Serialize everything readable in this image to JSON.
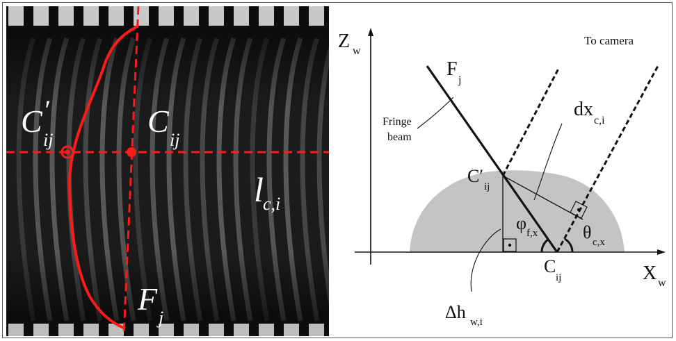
{
  "figure": {
    "photo": {
      "labels": {
        "c_prime_main": "C",
        "c_prime_mark": "′",
        "c_prime_sub": "ij",
        "c_main": "C",
        "c_sub": "ij",
        "l_main": "l",
        "l_sub": "c,i",
        "f_main": "F",
        "f_sub": "j"
      },
      "colors": {
        "overlay": "#ff1a1a",
        "background": "#0c0c0c",
        "text": "#ffffff"
      }
    },
    "schematic": {
      "labels": {
        "zw_main": "Z",
        "zw_sub": "w",
        "xw_main": "X",
        "xw_sub": "w",
        "to_camera": "To camera",
        "fj_main": "F",
        "fj_sub": "j",
        "fringe_line1": "Fringe",
        "fringe_line2": "beam",
        "dx_main": "dx",
        "dx_sub": "c,i",
        "cprime_main": "C′",
        "cprime_sub": "ij",
        "phi_main": "φ",
        "phi_sub": "f,x",
        "theta_main": "θ",
        "theta_sub": "c,x",
        "cij_main": "C",
        "cij_sub": "ij",
        "dh_main": "Δh",
        "dh_sub": "w,i"
      },
      "colors": {
        "surface": "#c4c4c4",
        "lines": "#111111"
      }
    }
  }
}
